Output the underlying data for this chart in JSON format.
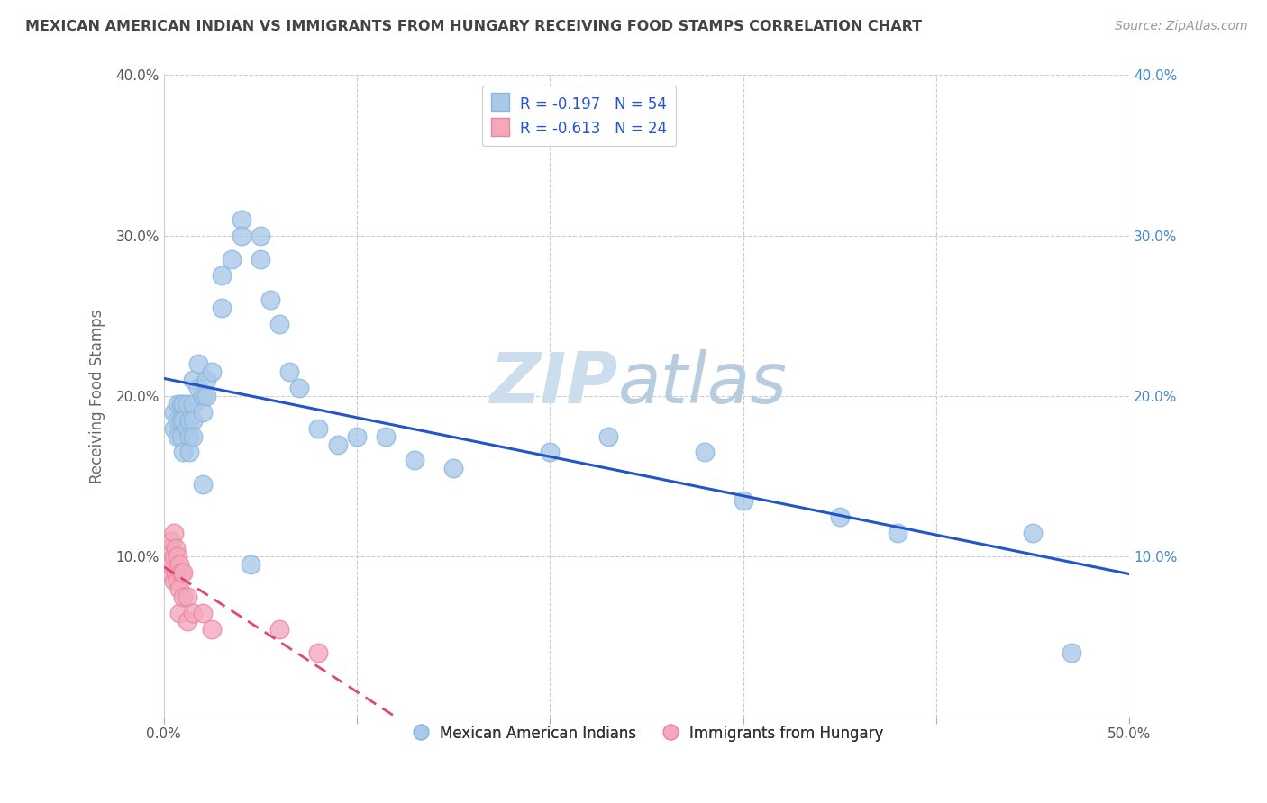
{
  "title": "MEXICAN AMERICAN INDIAN VS IMMIGRANTS FROM HUNGARY RECEIVING FOOD STAMPS CORRELATION CHART",
  "source": "Source: ZipAtlas.com",
  "ylabel": "Receiving Food Stamps",
  "xlabel": "",
  "xlim": [
    0,
    0.5
  ],
  "ylim": [
    0,
    0.4
  ],
  "xticks": [
    0.0,
    0.1,
    0.2,
    0.3,
    0.4,
    0.5
  ],
  "yticks": [
    0.0,
    0.1,
    0.2,
    0.3,
    0.4
  ],
  "xtick_labels": [
    "0.0%",
    "",
    "",
    "",
    "",
    "50.0%"
  ],
  "ytick_labels": [
    "",
    "10.0%",
    "20.0%",
    "30.0%",
    "40.0%"
  ],
  "blue_R": -0.197,
  "blue_N": 54,
  "pink_R": -0.613,
  "pink_N": 24,
  "legend_label_blue": "R = -0.197   N = 54",
  "legend_label_pink": "R = -0.613   N = 24",
  "scatter_label_blue": "Mexican American Indians",
  "scatter_label_pink": "Immigrants from Hungary",
  "blue_scatter_color": "#aac8e8",
  "pink_scatter_color": "#f4a8be",
  "blue_line_color": "#2255cc",
  "pink_line_color": "#dd3366",
  "watermark_zip_color": "#c5d8ed",
  "watermark_atlas_color": "#b8cce0",
  "background_color": "#ffffff",
  "grid_color": "#cccccc",
  "title_color": "#444444",
  "axis_label_color": "#666666",
  "tick_color_right": "#4488cc",
  "blue_x": [
    0.005,
    0.005,
    0.007,
    0.007,
    0.007,
    0.009,
    0.009,
    0.009,
    0.01,
    0.01,
    0.01,
    0.012,
    0.012,
    0.013,
    0.013,
    0.013,
    0.015,
    0.015,
    0.015,
    0.015,
    0.018,
    0.018,
    0.02,
    0.02,
    0.022,
    0.022,
    0.025,
    0.03,
    0.03,
    0.035,
    0.04,
    0.04,
    0.05,
    0.05,
    0.055,
    0.06,
    0.065,
    0.07,
    0.08,
    0.09,
    0.1,
    0.115,
    0.13,
    0.15,
    0.2,
    0.23,
    0.28,
    0.3,
    0.35,
    0.38,
    0.45,
    0.47,
    0.02,
    0.045
  ],
  "blue_y": [
    0.19,
    0.18,
    0.195,
    0.185,
    0.175,
    0.195,
    0.185,
    0.175,
    0.195,
    0.185,
    0.165,
    0.195,
    0.18,
    0.185,
    0.175,
    0.165,
    0.21,
    0.195,
    0.185,
    0.175,
    0.22,
    0.205,
    0.2,
    0.19,
    0.21,
    0.2,
    0.215,
    0.255,
    0.275,
    0.285,
    0.31,
    0.3,
    0.3,
    0.285,
    0.26,
    0.245,
    0.215,
    0.205,
    0.18,
    0.17,
    0.175,
    0.175,
    0.16,
    0.155,
    0.165,
    0.175,
    0.165,
    0.135,
    0.125,
    0.115,
    0.115,
    0.04,
    0.145,
    0.095
  ],
  "pink_x": [
    0.003,
    0.003,
    0.004,
    0.004,
    0.005,
    0.005,
    0.005,
    0.006,
    0.006,
    0.007,
    0.007,
    0.008,
    0.008,
    0.008,
    0.009,
    0.01,
    0.01,
    0.012,
    0.012,
    0.015,
    0.02,
    0.025,
    0.06,
    0.08
  ],
  "pink_y": [
    0.105,
    0.09,
    0.11,
    0.095,
    0.115,
    0.1,
    0.085,
    0.105,
    0.09,
    0.1,
    0.085,
    0.095,
    0.08,
    0.065,
    0.09,
    0.09,
    0.075,
    0.075,
    0.06,
    0.065,
    0.065,
    0.055,
    0.055,
    0.04
  ]
}
